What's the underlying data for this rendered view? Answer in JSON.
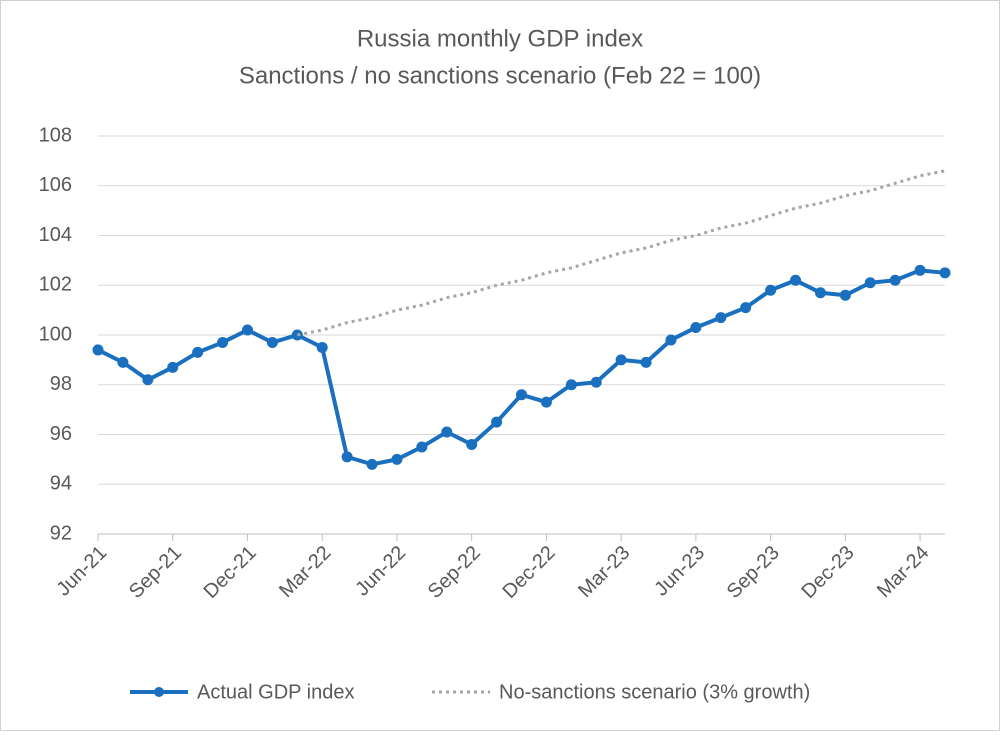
{
  "chart_data": {
    "type": "line",
    "title": "Russia monthly GDP index",
    "subtitle": "Sanctions / no sanctions scenario (Feb 22 = 100)",
    "categories": [
      "Jun-21",
      null,
      null,
      "Sep-21",
      null,
      null,
      "Dec-21",
      null,
      null,
      "Mar-22",
      null,
      null,
      "Jun-22",
      null,
      null,
      "Sep-22",
      null,
      null,
      "Dec-22",
      null,
      null,
      "Mar-23",
      null,
      null,
      "Jun-23",
      null,
      null,
      "Sep-23",
      null,
      null,
      "Dec-23",
      null,
      null,
      "Mar-24",
      null
    ],
    "series": [
      {
        "name": "Actual GDP index",
        "color": "#1a6fbf",
        "markers": true,
        "dash": "solid",
        "values": [
          99.4,
          98.9,
          98.2,
          98.7,
          99.3,
          99.7,
          100.2,
          99.7,
          100.0,
          99.5,
          95.1,
          94.8,
          95.0,
          95.5,
          96.1,
          95.6,
          96.5,
          97.6,
          97.3,
          98.0,
          98.1,
          99.0,
          98.9,
          99.8,
          100.3,
          100.7,
          101.1,
          101.8,
          102.2,
          101.7,
          101.6,
          102.1,
          102.2,
          102.6,
          102.5
        ]
      },
      {
        "name": "No-sanctions scenario (3% growth)",
        "color": "#a6a6a6",
        "markers": false,
        "dash": "dotted",
        "values": [
          null,
          null,
          null,
          null,
          null,
          null,
          null,
          null,
          100.0,
          100.2,
          100.5,
          100.7,
          101.0,
          101.2,
          101.5,
          101.7,
          102.0,
          102.2,
          102.5,
          102.7,
          103.0,
          103.3,
          103.5,
          103.8,
          104.0,
          104.3,
          104.5,
          104.8,
          105.1,
          105.3,
          105.6,
          105.8,
          106.1,
          106.4,
          106.6
        ]
      }
    ],
    "ylim": [
      92,
      108
    ],
    "yticks": [
      92,
      94,
      96,
      98,
      100,
      102,
      104,
      106,
      108
    ],
    "grid": true,
    "legend": "bottom"
  }
}
